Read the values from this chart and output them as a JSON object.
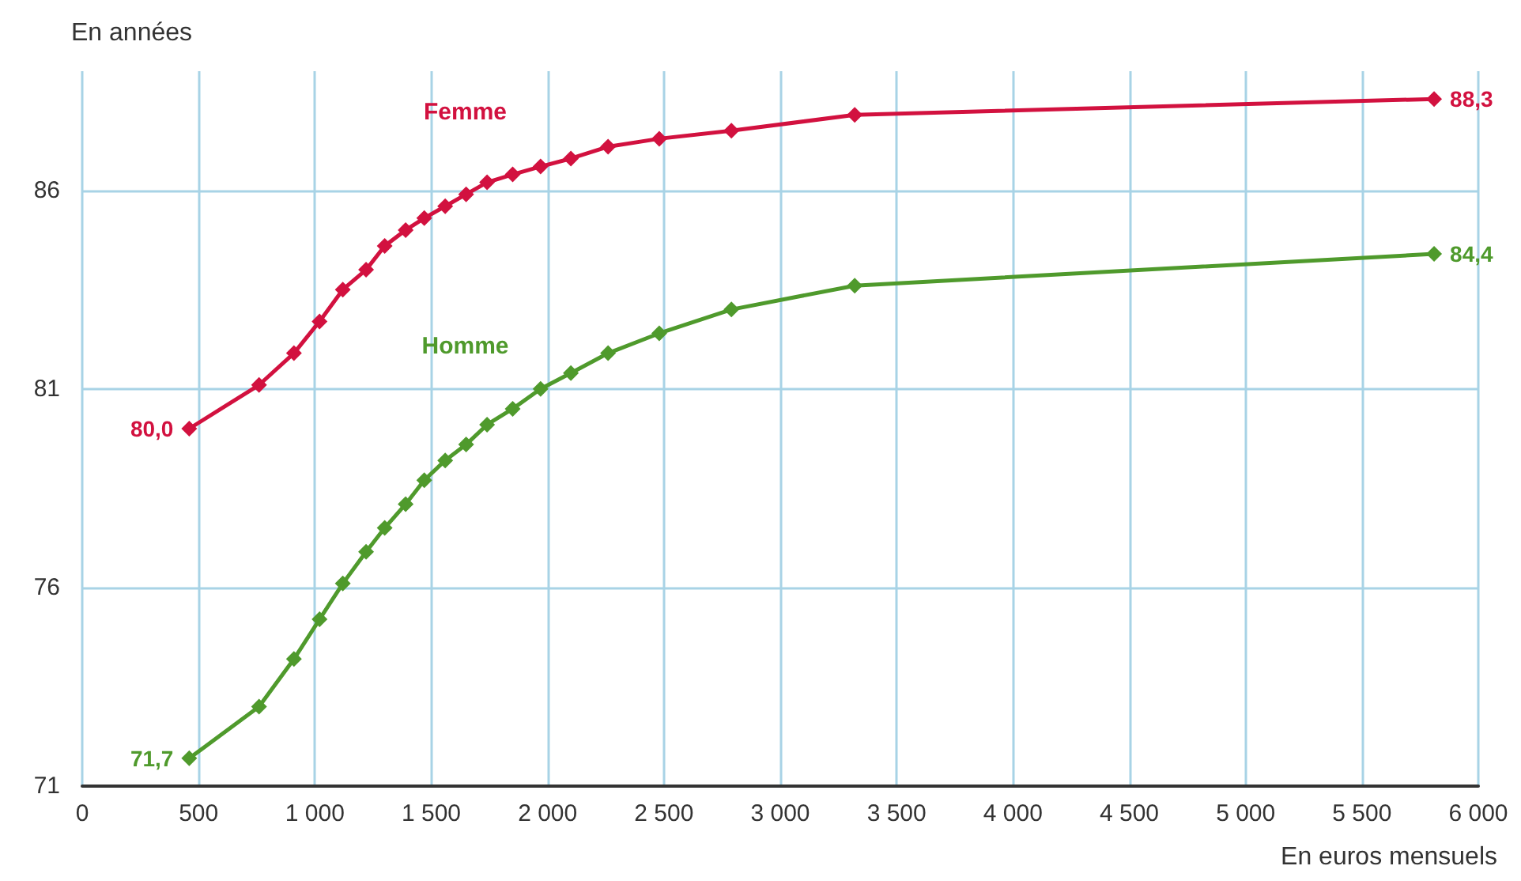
{
  "chart_data": {
    "type": "line",
    "xlabel": "En euros mensuels",
    "ylabel": "En années",
    "x": [
      460,
      760,
      910,
      1020,
      1120,
      1220,
      1300,
      1390,
      1470,
      1560,
      1650,
      1740,
      1850,
      1970,
      2100,
      2260,
      2480,
      2790,
      3320,
      5810
    ],
    "series": [
      {
        "name": "Femme",
        "color": "#d2113f",
        "values": [
          80.0,
          81.1,
          81.9,
          82.7,
          83.5,
          84.0,
          84.6,
          85.0,
          85.3,
          85.6,
          85.9,
          86.2,
          86.4,
          86.6,
          86.8,
          87.1,
          87.3,
          87.5,
          87.9,
          88.3
        ],
        "value_labels": [
          "80,0",
          null,
          null,
          null,
          null,
          null,
          null,
          null,
          null,
          null,
          null,
          null,
          null,
          null,
          null,
          null,
          null,
          null,
          null,
          "88,3"
        ]
      },
      {
        "name": "Homme",
        "color": "#4f9a2c",
        "values": [
          71.7,
          73.0,
          74.2,
          75.2,
          76.1,
          76.9,
          77.5,
          78.1,
          78.7,
          79.2,
          79.6,
          80.1,
          80.5,
          81.0,
          81.4,
          81.9,
          82.4,
          83.0,
          83.6,
          84.4
        ],
        "value_labels": [
          "71,7",
          null,
          null,
          null,
          null,
          null,
          null,
          null,
          null,
          null,
          null,
          null,
          null,
          null,
          null,
          null,
          null,
          null,
          null,
          "84,4"
        ]
      }
    ],
    "xlim": [
      0,
      6000
    ],
    "xticks": [
      0,
      500,
      {
        "value": 1000,
        "label": "1 000"
      },
      {
        "value": 1500,
        "label": "1 500"
      },
      {
        "value": 2000,
        "label": "2 000"
      },
      {
        "value": 2500,
        "label": "2 500"
      },
      {
        "value": 3000,
        "label": "3 000"
      },
      {
        "value": 3500,
        "label": "3 500"
      },
      {
        "value": 4000,
        "label": "4 000"
      },
      {
        "value": 4500,
        "label": "4 500"
      },
      {
        "value": 5000,
        "label": "5 000"
      },
      {
        "value": 5500,
        "label": "5 500"
      },
      {
        "value": 6000,
        "label": "6 000"
      }
    ],
    "ylim": [
      71,
      89
    ],
    "yticks": [
      71,
      76,
      81,
      86
    ],
    "grid": true,
    "legend": false,
    "marker": "diamond",
    "line_style": "solid"
  }
}
